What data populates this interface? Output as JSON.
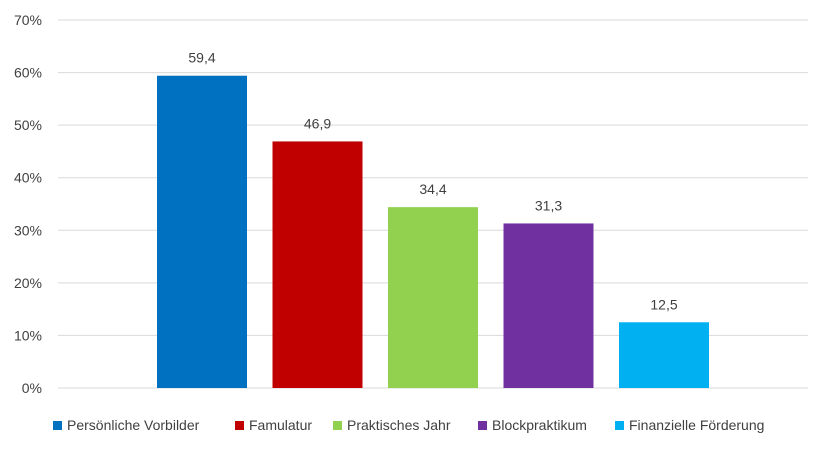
{
  "chart_data": {
    "type": "bar",
    "categories": [
      "Persönliche Vorbilder",
      "Famulatur",
      "Praktisches Jahr",
      "Blockpraktikum",
      "Finanzielle Förderung"
    ],
    "values": [
      59.4,
      46.9,
      34.4,
      31.3,
      12.5
    ],
    "value_labels": [
      "59,4",
      "46,9",
      "34,4",
      "31,3",
      "12,5"
    ],
    "colors": [
      "#0070C0",
      "#C00000",
      "#92D050",
      "#7030A0",
      "#00B0F0"
    ],
    "y_ticks": [
      "0%",
      "10%",
      "20%",
      "30%",
      "40%",
      "50%",
      "60%",
      "70%"
    ],
    "ylim": [
      0,
      70
    ],
    "grid": true,
    "legend_position": "bottom",
    "title": "",
    "xlabel": "",
    "ylabel": ""
  }
}
